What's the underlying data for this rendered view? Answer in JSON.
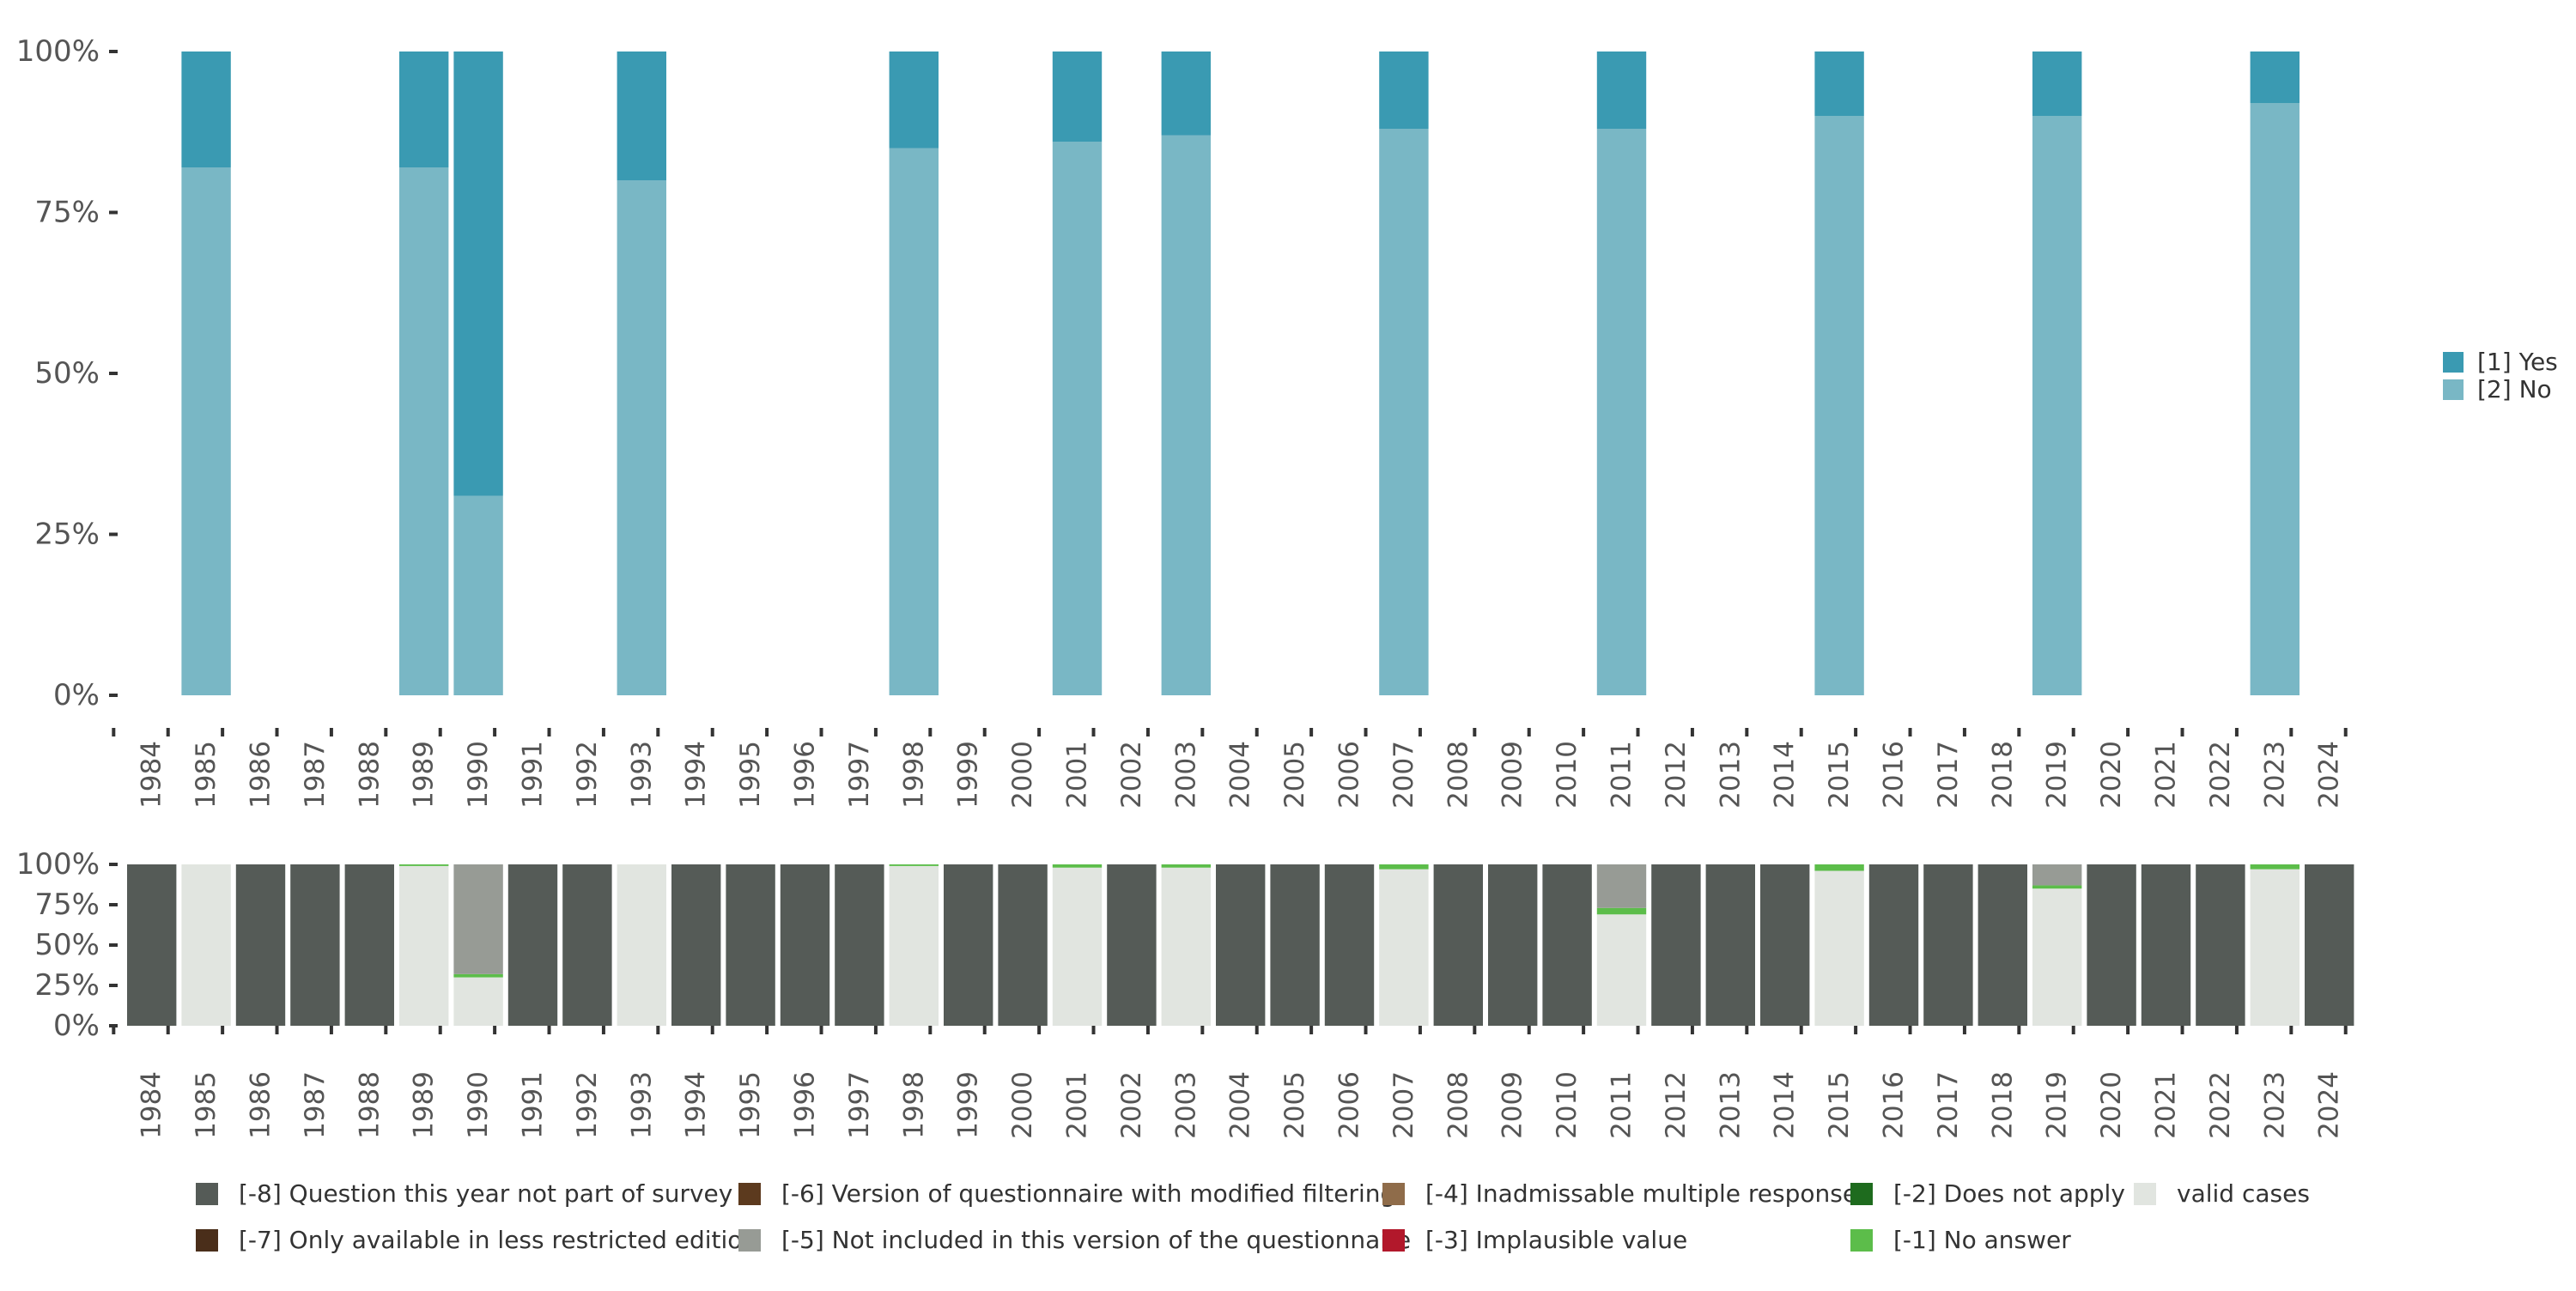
{
  "colors": {
    "yes": "#3A9AB2",
    "no": "#79B7C5",
    "not_part": "#555B57",
    "only_less_restricted": "#4A2E1A",
    "modified_filtering": "#5C3A1E",
    "not_included": "#979B95",
    "inadmissable": "#8F6C4A",
    "implausible": "#B2182B",
    "does_not_apply": "#1E6B1E",
    "no_answer": "#5CBD4A",
    "valid": "#E1E5E0",
    "axis_text": "#555555",
    "tick": "#333333"
  },
  "chart_data": [
    {
      "type": "bar",
      "stacked": true,
      "title": "",
      "xlabel": "",
      "ylabel": "",
      "ylim": [
        0,
        1
      ],
      "y_ticks": [
        "0%",
        "25%",
        "50%",
        "75%",
        "100%"
      ],
      "categories": [
        "1984",
        "1985",
        "1986",
        "1987",
        "1988",
        "1989",
        "1990",
        "1991",
        "1992",
        "1993",
        "1994",
        "1995",
        "1996",
        "1997",
        "1998",
        "1999",
        "2000",
        "2001",
        "2002",
        "2003",
        "2004",
        "2005",
        "2006",
        "2007",
        "2008",
        "2009",
        "2010",
        "2011",
        "2012",
        "2013",
        "2014",
        "2015",
        "2016",
        "2017",
        "2018",
        "2019",
        "2020",
        "2021",
        "2022",
        "2023",
        "2024"
      ],
      "series": [
        {
          "name": "[2] No",
          "color_key": "no",
          "values": [
            null,
            0.82,
            null,
            null,
            null,
            0.82,
            0.31,
            null,
            null,
            0.8,
            null,
            null,
            null,
            null,
            0.85,
            null,
            null,
            0.86,
            null,
            0.87,
            null,
            null,
            null,
            0.88,
            null,
            null,
            null,
            0.88,
            null,
            null,
            null,
            0.9,
            null,
            null,
            null,
            0.9,
            null,
            null,
            null,
            0.92,
            null
          ]
        },
        {
          "name": "[1] Yes",
          "color_key": "yes",
          "values": [
            null,
            0.18,
            null,
            null,
            null,
            0.18,
            0.69,
            null,
            null,
            0.2,
            null,
            null,
            null,
            null,
            0.15,
            null,
            null,
            0.14,
            null,
            0.13,
            null,
            null,
            null,
            0.12,
            null,
            null,
            null,
            0.12,
            null,
            null,
            null,
            0.1,
            null,
            null,
            null,
            0.1,
            null,
            null,
            null,
            0.08,
            null
          ]
        }
      ],
      "legend": [
        {
          "label": "[1] Yes",
          "color_key": "yes"
        },
        {
          "label": "[2] No",
          "color_key": "no"
        }
      ],
      "legend_position": "right"
    },
    {
      "type": "bar",
      "stacked": true,
      "title": "",
      "xlabel": "",
      "ylabel": "",
      "ylim": [
        0,
        1
      ],
      "y_ticks": [
        "0%",
        "25%",
        "50%",
        "75%",
        "100%"
      ],
      "categories": [
        "1984",
        "1985",
        "1986",
        "1987",
        "1988",
        "1989",
        "1990",
        "1991",
        "1992",
        "1993",
        "1994",
        "1995",
        "1996",
        "1997",
        "1998",
        "1999",
        "2000",
        "2001",
        "2002",
        "2003",
        "2004",
        "2005",
        "2006",
        "2007",
        "2008",
        "2009",
        "2010",
        "2011",
        "2012",
        "2013",
        "2014",
        "2015",
        "2016",
        "2017",
        "2018",
        "2019",
        "2020",
        "2021",
        "2022",
        "2023",
        "2024"
      ],
      "series": [
        {
          "name": "valid cases",
          "color_key": "valid",
          "values": [
            0,
            1.0,
            0,
            0,
            0,
            0.99,
            0.3,
            0,
            0,
            1.0,
            0,
            0,
            0,
            0,
            0.99,
            0,
            0,
            0.98,
            0,
            0.98,
            0,
            0,
            0,
            0.97,
            0,
            0,
            0,
            0.69,
            0,
            0,
            0,
            0.96,
            0,
            0,
            0,
            0.85,
            0,
            0,
            0,
            0.97,
            0
          ]
        },
        {
          "name": "[-1] No answer",
          "color_key": "no_answer",
          "values": [
            0,
            0,
            0,
            0,
            0,
            0.01,
            0.02,
            0,
            0,
            0,
            0,
            0,
            0,
            0,
            0.01,
            0,
            0,
            0.02,
            0,
            0.02,
            0,
            0,
            0,
            0.03,
            0,
            0,
            0,
            0.04,
            0,
            0,
            0,
            0.04,
            0,
            0,
            0,
            0.02,
            0,
            0,
            0,
            0.03,
            0
          ]
        },
        {
          "name": "[-5] Not included in this version of the questionnaire",
          "color_key": "not_included",
          "values": [
            0,
            0,
            0,
            0,
            0,
            0,
            0.68,
            0,
            0,
            0,
            0,
            0,
            0,
            0,
            0,
            0,
            0,
            0,
            0,
            0,
            0,
            0,
            0,
            0,
            0,
            0,
            0,
            0.27,
            0,
            0,
            0,
            0,
            0,
            0,
            0,
            0.13,
            0,
            0,
            0,
            0,
            0
          ]
        },
        {
          "name": "[-8] Question this year not part of survey",
          "color_key": "not_part",
          "values": [
            1,
            0,
            1,
            1,
            1,
            0,
            0,
            1,
            1,
            0,
            1,
            1,
            1,
            1,
            0,
            1,
            1,
            0,
            1,
            0,
            1,
            1,
            1,
            0,
            1,
            1,
            1,
            0,
            1,
            1,
            1,
            0,
            1,
            1,
            1,
            0,
            1,
            1,
            1,
            0,
            1
          ]
        }
      ],
      "legend": [
        {
          "label": "[-8] Question this year not part of survey",
          "color_key": "not_part"
        },
        {
          "label": "[-7] Only available in less restricted edition",
          "color_key": "only_less_restricted"
        },
        {
          "label": "[-6] Version of questionnaire with modified filtering",
          "color_key": "modified_filtering"
        },
        {
          "label": "[-5] Not included in this version of the questionnaire",
          "color_key": "not_included"
        },
        {
          "label": "[-4] Inadmissable multiple response",
          "color_key": "inadmissable"
        },
        {
          "label": "[-3] Implausible value",
          "color_key": "implausible"
        },
        {
          "label": "[-2] Does not apply",
          "color_key": "does_not_apply"
        },
        {
          "label": "[-1] No answer",
          "color_key": "no_answer"
        },
        {
          "label": "valid cases",
          "color_key": "valid"
        }
      ],
      "legend_position": "bottom"
    }
  ]
}
